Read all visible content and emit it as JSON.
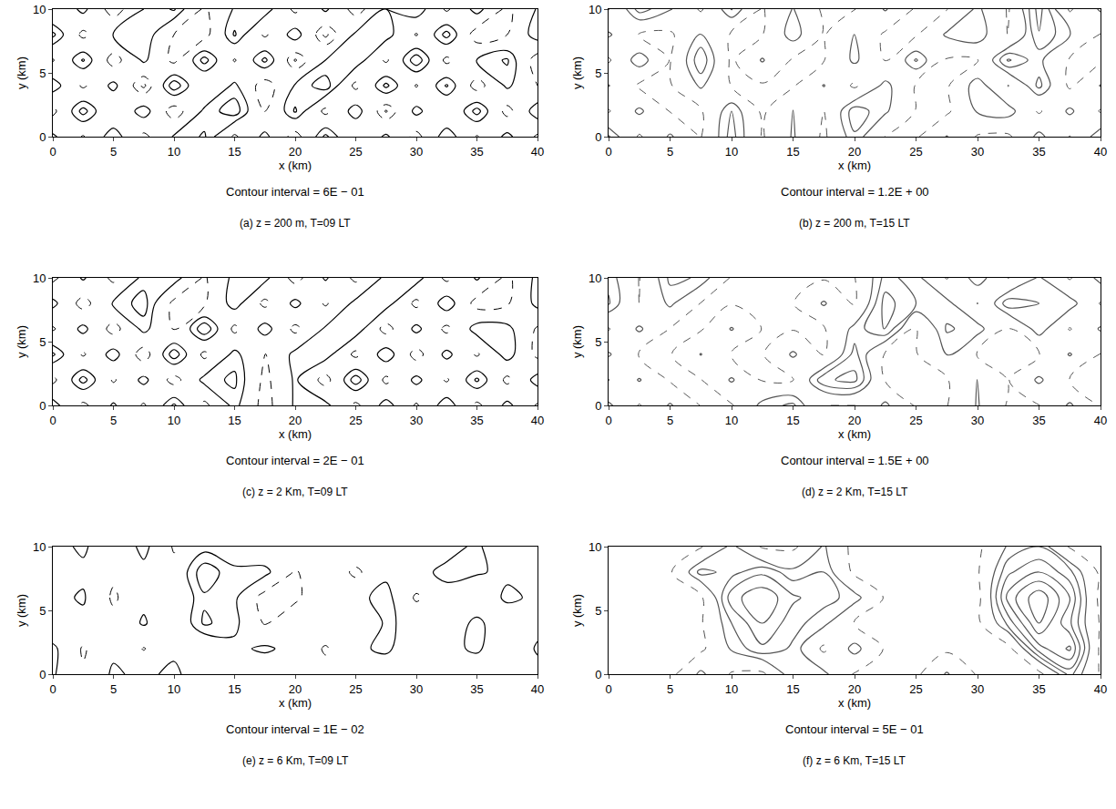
{
  "chart_data": [
    {
      "type": "contour",
      "title": "(a) z = 200 m, T=09 LT",
      "subtitle": "Contour interval = 6E − 01",
      "x_label": "x (km)",
      "y_label": "y (km)",
      "contour_interval": 0.6,
      "color": "#000000",
      "xlim": [
        0,
        40
      ],
      "ylim": [
        0,
        10
      ],
      "xticks": [
        0,
        5,
        10,
        15,
        20,
        25,
        30,
        35,
        40
      ],
      "yticks": [
        0,
        5,
        10
      ],
      "x": [
        0,
        2.5,
        5,
        7.5,
        10,
        12.5,
        15,
        17.5,
        20,
        22.5,
        25,
        27.5,
        30,
        32.5,
        35,
        37.5,
        40
      ],
      "y": [
        0,
        2,
        4,
        6,
        8,
        10
      ],
      "z": [
        [
          0.8,
          -0.7,
          1.2,
          -0.9,
          0.7,
          1.3,
          -0.8,
          0.9,
          -1.1,
          1.4,
          -0.6,
          0.8,
          -1.0,
          1.2,
          -0.7,
          0.9,
          -0.8
        ],
        [
          -0.9,
          1.5,
          -0.6,
          1.1,
          -1.2,
          0.8,
          1.6,
          -0.7,
          1.3,
          -0.9,
          1.1,
          -1.3,
          0.9,
          -0.6,
          1.5,
          -1.0,
          1.2
        ],
        [
          1.1,
          -0.8,
          0.9,
          -1.4,
          1.7,
          -0.6,
          0.8,
          -1.2,
          0.7,
          1.6,
          -0.9,
          1.4,
          -0.7,
          1.3,
          -1.1,
          0.8,
          -0.6
        ],
        [
          -0.7,
          1.3,
          -1.1,
          0.8,
          -0.9,
          1.5,
          -0.7,
          1.4,
          -1.3,
          0.6,
          1.2,
          -0.8,
          1.7,
          -0.9,
          0.7,
          1.3,
          -1.2
        ],
        [
          1.4,
          -0.9,
          0.7,
          1.2,
          -0.6,
          -1.0,
          1.3,
          -0.8,
          1.1,
          -1.4,
          0.8,
          1.0,
          -0.7,
          1.5,
          -1.2,
          -0.6,
          1.1
        ],
        [
          -0.6,
          0.9,
          -1.2,
          0.6,
          1.3,
          -0.8,
          0.7,
          1.1,
          -0.9,
          0.8,
          -1.1,
          0.6,
          1.2,
          -0.8,
          1.0,
          -0.9,
          0.7
        ]
      ]
    },
    {
      "type": "contour",
      "title": "(b) z = 200 m, T=15 LT",
      "subtitle": "Contour interval = 1.2E + 00",
      "x_label": "x (km)",
      "y_label": "y (km)",
      "contour_interval": 1.2,
      "color": "#555555",
      "xlim": [
        0,
        40
      ],
      "ylim": [
        0,
        10
      ],
      "xticks": [
        0,
        5,
        10,
        15,
        20,
        25,
        30,
        35,
        40
      ],
      "yticks": [
        0,
        5,
        10
      ],
      "x": [
        0,
        2.5,
        5,
        7.5,
        10,
        12.5,
        15,
        17.5,
        20,
        22.5,
        25,
        27.5,
        30,
        32.5,
        35,
        37.5,
        40
      ],
      "y": [
        0,
        2,
        4,
        6,
        8,
        10
      ],
      "z": [
        [
          2.6,
          -1.5,
          1.5,
          -1.3,
          3.0,
          -1.4,
          1.4,
          -1.6,
          2.2,
          -1.3,
          -1.5,
          1.3,
          -1.4,
          -1.6,
          1.8,
          -1.3,
          2.4
        ],
        [
          -1.4,
          1.6,
          -1.3,
          -1.5,
          2.4,
          -1.6,
          1.3,
          -1.4,
          3.2,
          1.5,
          -1.3,
          -1.6,
          1.4,
          2.0,
          -1.5,
          1.6,
          -1.4
        ],
        [
          1.3,
          -1.6,
          -1.4,
          1.5,
          -1.3,
          -1.5,
          -1.4,
          1.3,
          -1.6,
          1.8,
          -1.4,
          -1.5,
          2.2,
          -1.3,
          2.8,
          -1.6,
          1.3
        ],
        [
          -1.5,
          2.2,
          -1.3,
          3.4,
          -1.6,
          1.4,
          -1.5,
          -1.3,
          1.6,
          -1.4,
          2.6,
          -1.5,
          -1.3,
          3.8,
          1.6,
          -1.4,
          -1.5
        ],
        [
          1.5,
          -1.3,
          -1.6,
          1.4,
          -1.5,
          -1.3,
          2.1,
          -1.4,
          1.3,
          -1.6,
          -1.4,
          1.5,
          2.3,
          -1.5,
          3.5,
          1.4,
          -1.3
        ],
        [
          -1.3,
          3.0,
          1.4,
          -1.5,
          2.5,
          -1.4,
          1.3,
          -1.6,
          -1.3,
          1.4,
          -1.5,
          -1.3,
          1.6,
          -1.4,
          4.2,
          -1.5,
          1.5
        ]
      ]
    },
    {
      "type": "contour",
      "title": "(c) z = 2 Km, T=09 LT",
      "subtitle": "Contour interval = 2E − 01",
      "x_label": "x (km)",
      "y_label": "y (km)",
      "contour_interval": 0.2,
      "color": "#000000",
      "xlim": [
        0,
        40
      ],
      "ylim": [
        0,
        10
      ],
      "xticks": [
        0,
        5,
        10,
        15,
        20,
        25,
        30,
        35,
        40
      ],
      "yticks": [
        0,
        5,
        10
      ],
      "x": [
        0,
        2.5,
        5,
        7.5,
        10,
        12.5,
        15,
        17.5,
        20,
        22.5,
        25,
        27.5,
        30,
        32.5,
        35,
        37.5,
        40
      ],
      "y": [
        0,
        2,
        4,
        6,
        8,
        10
      ],
      "z": [
        [
          0.35,
          -0.3,
          0.25,
          -0.25,
          0.45,
          -0.3,
          0.3,
          -0.35,
          0.25,
          0.3,
          -0.3,
          0.35,
          -0.25,
          0.4,
          -0.3,
          0.3,
          -0.25
        ],
        [
          -0.3,
          0.5,
          -0.25,
          0.3,
          -0.35,
          0.3,
          0.45,
          -0.3,
          0.25,
          -0.35,
          0.55,
          -0.3,
          0.3,
          -0.25,
          0.45,
          -0.3,
          0.35
        ],
        [
          0.45,
          -0.25,
          0.35,
          -0.4,
          0.55,
          -0.3,
          0.3,
          -0.25,
          0.3,
          0.35,
          -0.3,
          0.4,
          -0.35,
          0.3,
          -0.25,
          0.35,
          -0.3
        ],
        [
          -0.25,
          0.3,
          -0.35,
          0.3,
          -0.25,
          0.6,
          -0.3,
          0.35,
          -0.3,
          0.25,
          0.4,
          -0.35,
          0.3,
          -0.3,
          0.35,
          0.3,
          -0.25
        ],
        [
          0.3,
          -0.35,
          0.25,
          0.5,
          -0.3,
          -0.25,
          0.35,
          -0.3,
          0.3,
          -0.25,
          0.3,
          0.35,
          -0.3,
          0.4,
          -0.35,
          -0.25,
          0.3
        ],
        [
          -0.3,
          0.25,
          -0.3,
          0.3,
          0.35,
          -0.25,
          0.3,
          0.3,
          -0.35,
          0.25,
          -0.3,
          0.3,
          0.35,
          -0.3,
          0.25,
          -0.3,
          0.3
        ]
      ]
    },
    {
      "type": "contour",
      "title": "(d) z = 2 Km, T=15 LT",
      "subtitle": "Contour interval = 1.5E + 00",
      "x_label": "x (km)",
      "y_label": "y (km)",
      "contour_interval": 1.5,
      "color": "#555555",
      "xlim": [
        0,
        40
      ],
      "ylim": [
        0,
        10
      ],
      "xticks": [
        0,
        5,
        10,
        15,
        20,
        25,
        30,
        35,
        40
      ],
      "yticks": [
        0,
        5,
        10
      ],
      "x": [
        0,
        2.5,
        5,
        7.5,
        10,
        12.5,
        15,
        17.5,
        20,
        22.5,
        25,
        27.5,
        30,
        32.5,
        35,
        37.5,
        40
      ],
      "y": [
        0,
        2,
        4,
        6,
        8,
        10
      ],
      "z": [
        [
          2.0,
          -1.7,
          1.8,
          -1.6,
          -1.8,
          2.2,
          3.4,
          -1.7,
          -1.6,
          2.0,
          -1.8,
          -1.6,
          1.7,
          -1.8,
          -1.6,
          1.9,
          -1.7
        ],
        [
          -1.6,
          1.7,
          -1.8,
          -1.6,
          1.8,
          -1.7,
          -1.6,
          4.2,
          5.0,
          -1.7,
          -1.6,
          -1.8,
          1.7,
          -1.6,
          2.0,
          -1.7,
          -1.8
        ],
        [
          1.8,
          -1.6,
          -1.7,
          1.6,
          -1.8,
          -1.7,
          1.9,
          -1.6,
          3.6,
          -1.8,
          -1.7,
          1.8,
          -1.6,
          -1.7,
          -1.8,
          1.7,
          -1.6
        ],
        [
          -1.7,
          1.9,
          -1.6,
          -1.8,
          1.7,
          -1.6,
          -1.7,
          -1.8,
          2.2,
          4.6,
          -1.6,
          3.2,
          2.4,
          -1.8,
          2.6,
          -1.7,
          1.8
        ],
        [
          3.2,
          -1.7,
          2.0,
          -1.6,
          -1.7,
          -1.8,
          -1.6,
          1.8,
          -1.7,
          5.2,
          3.0,
          2.2,
          -1.6,
          4.0,
          3.0,
          2.5,
          -1.7
        ],
        [
          2.6,
          -1.6,
          3.4,
          2.8,
          -1.8,
          -1.6,
          -1.7,
          -1.8,
          -1.6,
          3.6,
          2.2,
          -1.7,
          2.8,
          -1.6,
          1.8,
          -1.8,
          2.4
        ]
      ]
    },
    {
      "type": "contour",
      "title": "(e) z = 6 Km, T=09 LT",
      "subtitle": "Contour interval = 1E − 02",
      "x_label": "x (km)",
      "y_label": "y (km)",
      "contour_interval": 0.01,
      "color": "#000000",
      "xlim": [
        0,
        40
      ],
      "ylim": [
        0,
        10
      ],
      "xticks": [
        0,
        5,
        10,
        15,
        20,
        25,
        30,
        35,
        40
      ],
      "yticks": [
        0,
        5,
        10
      ],
      "x": [
        0,
        2.5,
        5,
        7.5,
        10,
        12.5,
        15,
        17.5,
        20,
        22.5,
        25,
        27.5,
        30,
        32.5,
        35,
        37.5,
        40
      ],
      "y": [
        0,
        2,
        4,
        6,
        8,
        10
      ],
      "z": [
        [
          0.012,
          -0.008,
          0.013,
          0.005,
          0.015,
          -0.006,
          0.004,
          -0.005,
          0.006,
          -0.004,
          0.005,
          -0.006,
          0.004,
          0.005,
          -0.004,
          0.006,
          0.004
        ],
        [
          0.014,
          -0.012,
          0.006,
          -0.011,
          0.005,
          -0.007,
          0.006,
          0.013,
          0.004,
          -0.012,
          0.006,
          0.014,
          -0.006,
          0.005,
          0.013,
          -0.005,
          0.012
        ],
        [
          -0.006,
          0.005,
          -0.004,
          0.012,
          -0.006,
          0.022,
          0.014,
          -0.012,
          0.005,
          0.004,
          -0.005,
          0.012,
          0.006,
          -0.004,
          0.015,
          -0.006,
          0.005
        ],
        [
          0.005,
          0.012,
          -0.013,
          0.006,
          -0.005,
          0.018,
          0.013,
          -0.018,
          -0.014,
          0.006,
          0.005,
          0.016,
          -0.013,
          0.004,
          -0.006,
          0.014,
          0.006
        ],
        [
          -0.005,
          0.006,
          -0.006,
          0.005,
          -0.004,
          0.028,
          0.012,
          0.015,
          -0.012,
          0.005,
          -0.014,
          0.006,
          0.005,
          0.014,
          0.012,
          0.006,
          -0.005
        ],
        [
          0.004,
          0.013,
          -0.005,
          0.015,
          -0.012,
          0.005,
          0.004,
          -0.006,
          0.005,
          -0.004,
          0.006,
          0.005,
          -0.006,
          0.004,
          0.013,
          -0.005,
          0.004
        ]
      ]
    },
    {
      "type": "contour",
      "title": "(f) z = 6 Km, T=15 LT",
      "subtitle": "Contour interval = 5E − 01",
      "x_label": "x (km)",
      "y_label": "y (km)",
      "contour_interval": 0.5,
      "color": "#555555",
      "xlim": [
        0,
        40
      ],
      "ylim": [
        0,
        10
      ],
      "xticks": [
        0,
        5,
        10,
        15,
        20,
        25,
        30,
        35,
        40
      ],
      "yticks": [
        0,
        5,
        10
      ],
      "x": [
        0,
        2.5,
        5,
        7.5,
        10,
        12.5,
        15,
        17.5,
        20,
        22.5,
        25,
        27.5,
        30,
        32.5,
        35,
        37.5,
        40
      ],
      "y": [
        0,
        2,
        4,
        6,
        8,
        10
      ],
      "z": [
        [
          -0.7,
          -0.6,
          -0.8,
          0.7,
          -0.6,
          -0.7,
          1.0,
          0.7,
          -0.6,
          -0.8,
          -0.7,
          0.6,
          -0.6,
          -0.7,
          -0.8,
          1.2,
          -0.6
        ],
        [
          -0.8,
          -0.7,
          -0.6,
          -0.7,
          0.6,
          1.4,
          0.9,
          -0.7,
          0.8,
          -0.6,
          -0.8,
          -0.7,
          -0.6,
          -0.8,
          1.8,
          2.6,
          -0.7
        ],
        [
          -0.6,
          -0.8,
          -0.7,
          -0.6,
          1.0,
          2.0,
          1.2,
          0.7,
          -0.6,
          -0.7,
          -0.6,
          -0.8,
          -0.7,
          1.2,
          3.0,
          1.6,
          -0.6
        ],
        [
          -0.7,
          -0.6,
          -0.8,
          -0.7,
          1.8,
          2.4,
          1.6,
          1.2,
          0.8,
          -0.6,
          -0.7,
          -0.6,
          -0.8,
          2.2,
          3.4,
          2.0,
          -0.8
        ],
        [
          -0.8,
          -0.7,
          -0.6,
          1.2,
          0.8,
          1.4,
          0.7,
          1.0,
          -0.7,
          -0.8,
          -0.6,
          -0.7,
          -0.6,
          1.4,
          2.0,
          1.2,
          -0.7
        ],
        [
          -0.6,
          -0.7,
          -0.8,
          -0.6,
          0.7,
          -0.6,
          -0.7,
          0.6,
          -0.8,
          -0.6,
          -0.7,
          -0.8,
          -0.7,
          0.6,
          1.0,
          -0.6,
          -0.7
        ]
      ]
    }
  ]
}
